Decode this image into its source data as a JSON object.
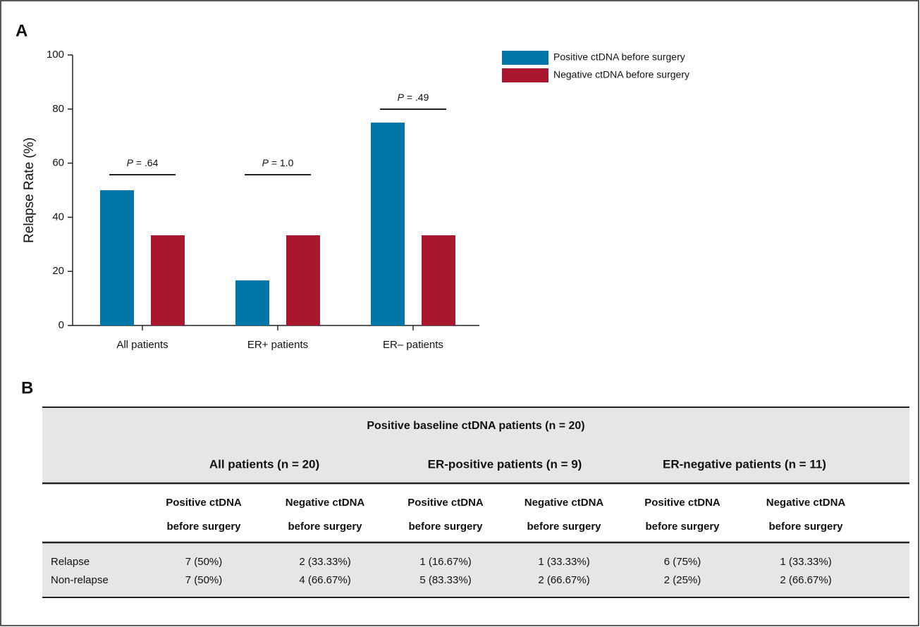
{
  "chart_data": {
    "type": "bar",
    "panel_label": "A",
    "y_label": "Relapse Rate  (%)",
    "categories": [
      "All patients",
      "ER+ patients",
      "ER– patients"
    ],
    "series": [
      {
        "name": "Positive ctDNA before surgery",
        "color": "#0077a8",
        "values": [
          50,
          16.67,
          75
        ]
      },
      {
        "name": "Negative ctDNA before surgery",
        "color": "#a8172e",
        "values": [
          33.33,
          33.33,
          33.33
        ]
      }
    ],
    "ylim": [
      0,
      100
    ],
    "yticks": [
      0,
      20,
      40,
      60,
      80,
      100
    ],
    "legend": "upper right",
    "annotations": [
      {
        "symbol": "P",
        "text": "= .64"
      },
      {
        "symbol": "P",
        "text": "= 1.0"
      },
      {
        "symbol": "P",
        "text": "= .49"
      }
    ]
  },
  "table": {
    "panel_label": "B",
    "title": "Positive baseline ctDNA patients (n = 20)",
    "groups": [
      "All patients (n = 20)",
      "ER-positive patients (n = 9)",
      "ER-negative patients (n = 11)"
    ],
    "columns": [
      [
        "Positive ctDNA",
        "before surgery"
      ],
      [
        "Negative ctDNA",
        "before surgery"
      ],
      [
        "Positive ctDNA",
        "before surgery"
      ],
      [
        "Negative ctDNA",
        "before surgery"
      ],
      [
        "Positive ctDNA",
        "before surgery"
      ],
      [
        "Negative ctDNA",
        "before surgery"
      ]
    ],
    "rows": [
      [
        "Relapse",
        "7 (50%)",
        "2 (33.33%)",
        "1 (16.67%)",
        "1 (33.33%)",
        "6 (75%)",
        "1 (33.33%)"
      ],
      [
        "Non-relapse",
        "7 (50%)",
        "4 (66.67%)",
        "5 (83.33%)",
        "2 (66.67%)",
        "2 (25%)",
        "2 (66.67%)"
      ]
    ]
  }
}
